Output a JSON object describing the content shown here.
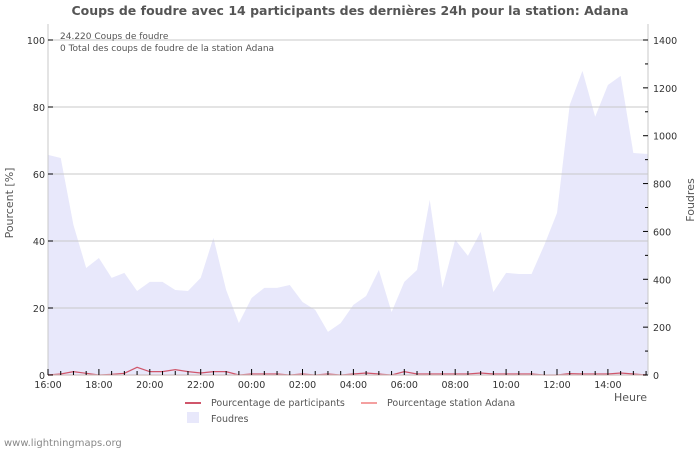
{
  "chart_data": {
    "type": "area",
    "title": "Coups de foudre avec 14 participants des dernières 24h pour la station: Adana",
    "xlabel": "Heure",
    "ylabel": "Pourcent   [%]",
    "y2label": "Foudres",
    "ylim": [
      0,
      100
    ],
    "y2lim": [
      0,
      1400
    ],
    "yticks": [
      "0",
      "20",
      "40",
      "60",
      "80",
      "100"
    ],
    "y2ticks": [
      "0",
      "200",
      "400",
      "600",
      "800",
      "1000",
      "1200",
      "1400"
    ],
    "xticks": [
      "16:00",
      "18:00",
      "20:00",
      "22:00",
      "00:00",
      "02:00",
      "04:00",
      "06:00",
      "08:00",
      "10:00",
      "12:00",
      "14:00"
    ],
    "grid": true,
    "legend_position": "bottom",
    "annotations": [
      "24.220  Coups de foudre",
      "0 Total des coups de foudre de la station Adana"
    ],
    "x": [
      "16:00",
      "16:30",
      "17:00",
      "17:30",
      "18:00",
      "18:30",
      "19:00",
      "19:30",
      "20:00",
      "20:30",
      "21:00",
      "21:30",
      "22:00",
      "22:30",
      "23:00",
      "23:30",
      "00:00",
      "00:30",
      "01:00",
      "01:30",
      "02:00",
      "02:30",
      "03:00",
      "03:30",
      "04:00",
      "04:30",
      "05:00",
      "05:30",
      "06:00",
      "06:30",
      "07:00",
      "07:30",
      "08:00",
      "08:30",
      "09:00",
      "09:30",
      "10:00",
      "10:30",
      "11:00",
      "11:30",
      "12:00",
      "12:30",
      "13:00",
      "13:30",
      "14:00",
      "14:30",
      "15:00",
      "15:30"
    ],
    "series": [
      {
        "name": "Foudres",
        "axis": "right",
        "color": "#e8e8fb",
        "values": [
          920,
          907,
          627,
          447,
          489,
          406,
          427,
          351,
          389,
          389,
          355,
          351,
          406,
          573,
          355,
          217,
          322,
          364,
          364,
          376,
          305,
          272,
          180,
          217,
          293,
          330,
          439,
          263,
          389,
          439,
          732,
          364,
          565,
          498,
          598,
          347,
          427,
          422,
          422,
          543,
          677,
          1129,
          1271,
          1079,
          1212,
          1250,
          928,
          924
        ]
      },
      {
        "name": "Pourcentage de participants",
        "axis": "left",
        "color": "#d0566b",
        "values": [
          0,
          0.3,
          1.0,
          0.5,
          0,
          0.2,
          0.5,
          2.3,
          1.0,
          1.0,
          1.6,
          1.0,
          0.6,
          1.0,
          1.0,
          0,
          0.3,
          0.3,
          0.3,
          0,
          0.3,
          0,
          0.3,
          0,
          0.3,
          0.6,
          0.3,
          0,
          1.0,
          0.3,
          0.3,
          0.3,
          0.3,
          0.3,
          0.6,
          0.3,
          0.3,
          0.3,
          0.3,
          0,
          0,
          0.4,
          0.3,
          0.3,
          0.3,
          0.6,
          0.3,
          0
        ]
      },
      {
        "name": "Pourcentage station Adana",
        "axis": "left",
        "color": "#f4a0a0",
        "values": [
          0,
          0,
          0,
          0,
          0,
          0,
          0,
          0,
          0,
          0,
          0,
          0,
          0,
          0,
          0,
          0,
          0,
          0,
          0,
          0,
          0,
          0,
          0,
          0,
          0,
          0,
          0,
          0,
          0,
          0,
          0,
          0,
          0,
          0,
          0,
          0,
          0,
          0,
          0,
          0,
          0,
          0,
          0,
          0,
          0,
          0,
          0,
          0
        ]
      }
    ]
  },
  "legend": {
    "participants": "Pourcentage de participants",
    "station": "Pourcentage station Adana",
    "foudres": "Foudres"
  },
  "annotation": {
    "line1": "24.220  Coups de foudre",
    "line2": "0 Total des coups de foudre de la station Adana"
  },
  "axes": {
    "y_left_label": "Pourcent   [%]",
    "y_right_label": "Foudres",
    "x_label": "Heure"
  },
  "footer": "www.lightningmaps.org",
  "colors": {
    "area": "#e8e8fb",
    "participants": "#d0566b",
    "station": "#f4a0a0",
    "grid": "#c8c8c8",
    "text": "#555555"
  }
}
